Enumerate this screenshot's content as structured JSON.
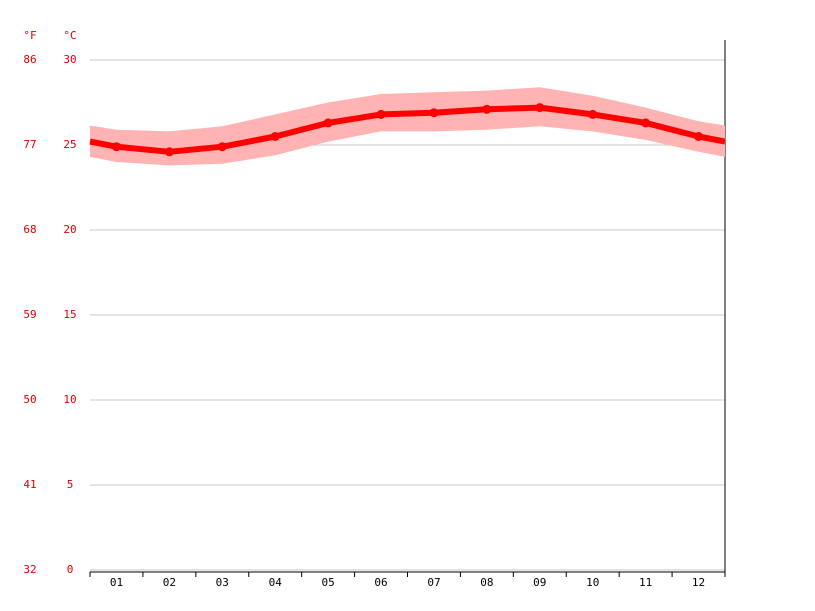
{
  "chart_data": {
    "type": "line",
    "categories": [
      "01",
      "02",
      "03",
      "04",
      "05",
      "06",
      "07",
      "08",
      "09",
      "10",
      "11",
      "12"
    ],
    "series": [
      {
        "color": "#ff0000",
        "values": [
          24.9,
          24.6,
          24.9,
          25.5,
          26.3,
          26.8,
          26.9,
          27.1,
          27.2,
          26.8,
          26.3,
          25.5
        ]
      }
    ],
    "band": {
      "color": "#ffb3b3",
      "lower": [
        24.0,
        23.8,
        23.9,
        24.4,
        25.2,
        25.8,
        25.8,
        25.9,
        26.1,
        25.8,
        25.3,
        24.6
      ],
      "upper": [
        25.9,
        25.8,
        26.1,
        26.8,
        27.5,
        28.0,
        28.1,
        28.2,
        28.4,
        27.9,
        27.2,
        26.4
      ]
    },
    "ylabel": "°C",
    "ylim": [
      0,
      30
    ],
    "yticks": [
      0,
      5,
      10,
      15,
      20,
      25,
      30
    ],
    "y2label": "°F",
    "y2lim": [
      32,
      86
    ],
    "y2ticks": [
      32,
      41,
      50,
      59,
      68,
      77,
      86
    ],
    "grid": true
  }
}
